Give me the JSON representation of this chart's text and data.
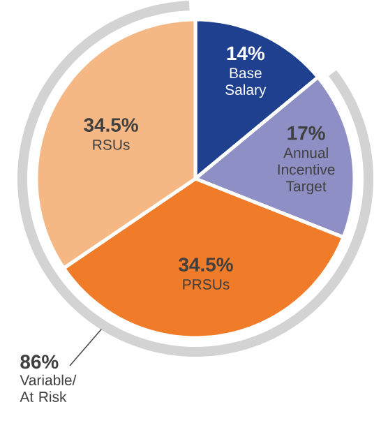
{
  "chart_data": {
    "type": "pie",
    "categories": [
      "Base Salary",
      "Annual Incentive Target",
      "PRSUs",
      "RSUs"
    ],
    "values": [
      14,
      17,
      34.5,
      34.5
    ],
    "value_labels": [
      "14%",
      "17%",
      "34.5%",
      "34.5%"
    ],
    "colors": [
      "#1f3f8f",
      "#8e8fc4",
      "#f07c2a",
      "#f5b783"
    ],
    "annotations": [
      "86%",
      "Variable/ At Risk"
    ]
  }
}
